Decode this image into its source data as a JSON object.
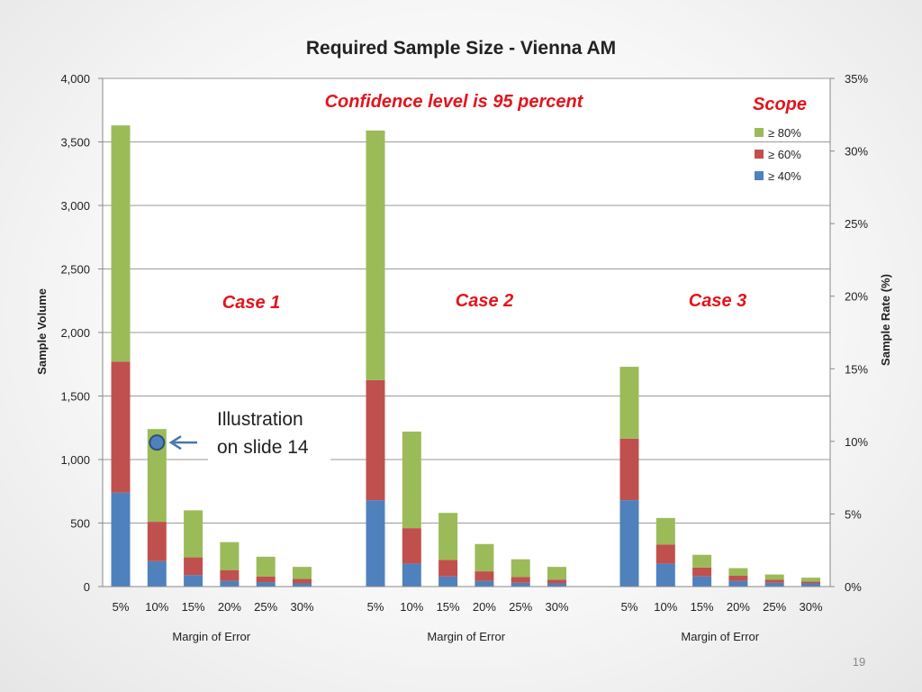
{
  "slide": {
    "page_number": "19"
  },
  "chart_data": {
    "type": "bar",
    "stacked": true,
    "title": "Required Sample Size - Vienna AM",
    "subtitle": "Confidence level is 95 percent",
    "xlabel": "Margin of Error",
    "ylabel": "Sample Volume",
    "y2label": "Sample Rate (%)",
    "ylim": [
      0,
      4000
    ],
    "y2lim": [
      0,
      0.35
    ],
    "yticks": [
      "0",
      "500",
      "1,000",
      "1,500",
      "2,000",
      "2,500",
      "3,000",
      "3,500",
      "4,000"
    ],
    "y2ticks": [
      "0%",
      "5%",
      "10%",
      "15%",
      "20%",
      "25%",
      "30%",
      "35%"
    ],
    "grid": true,
    "legend_title": "Scope",
    "legend_position": "top-right",
    "series": [
      {
        "name": "≥ 80%",
        "color": "#9bbb59"
      },
      {
        "name": "≥ 60%",
        "color": "#c0504d"
      },
      {
        "name": "≥ 40%",
        "color": "#4f81bd"
      }
    ],
    "groups": [
      {
        "label": "Case 1",
        "categories": [
          "5%",
          "10%",
          "15%",
          "20%",
          "25%",
          "30%"
        ],
        "totals": {
          "≥ 40%": [
            740,
            200,
            90,
            45,
            35,
            25
          ],
          "≥ 60%": [
            1770,
            510,
            230,
            130,
            80,
            60
          ],
          "≥ 80%": [
            3630,
            1240,
            600,
            350,
            235,
            155
          ]
        }
      },
      {
        "label": "Case 2",
        "categories": [
          "5%",
          "10%",
          "15%",
          "20%",
          "25%",
          "30%"
        ],
        "totals": {
          "≥ 40%": [
            680,
            180,
            80,
            45,
            30,
            25
          ],
          "≥ 60%": [
            1625,
            460,
            210,
            120,
            75,
            55
          ],
          "≥ 80%": [
            3590,
            1220,
            580,
            335,
            215,
            155
          ]
        }
      },
      {
        "label": "Case 3",
        "categories": [
          "5%",
          "10%",
          "15%",
          "20%",
          "25%",
          "30%"
        ],
        "totals": {
          "≥ 40%": [
            680,
            180,
            80,
            45,
            30,
            25
          ],
          "≥ 60%": [
            1165,
            330,
            150,
            85,
            55,
            40
          ],
          "≥ 80%": [
            1730,
            540,
            250,
            145,
            95,
            70
          ]
        }
      }
    ],
    "annotation": {
      "text_line1": "Illustration",
      "text_line2": "on slide 14",
      "group": 0,
      "category": 1
    }
  }
}
